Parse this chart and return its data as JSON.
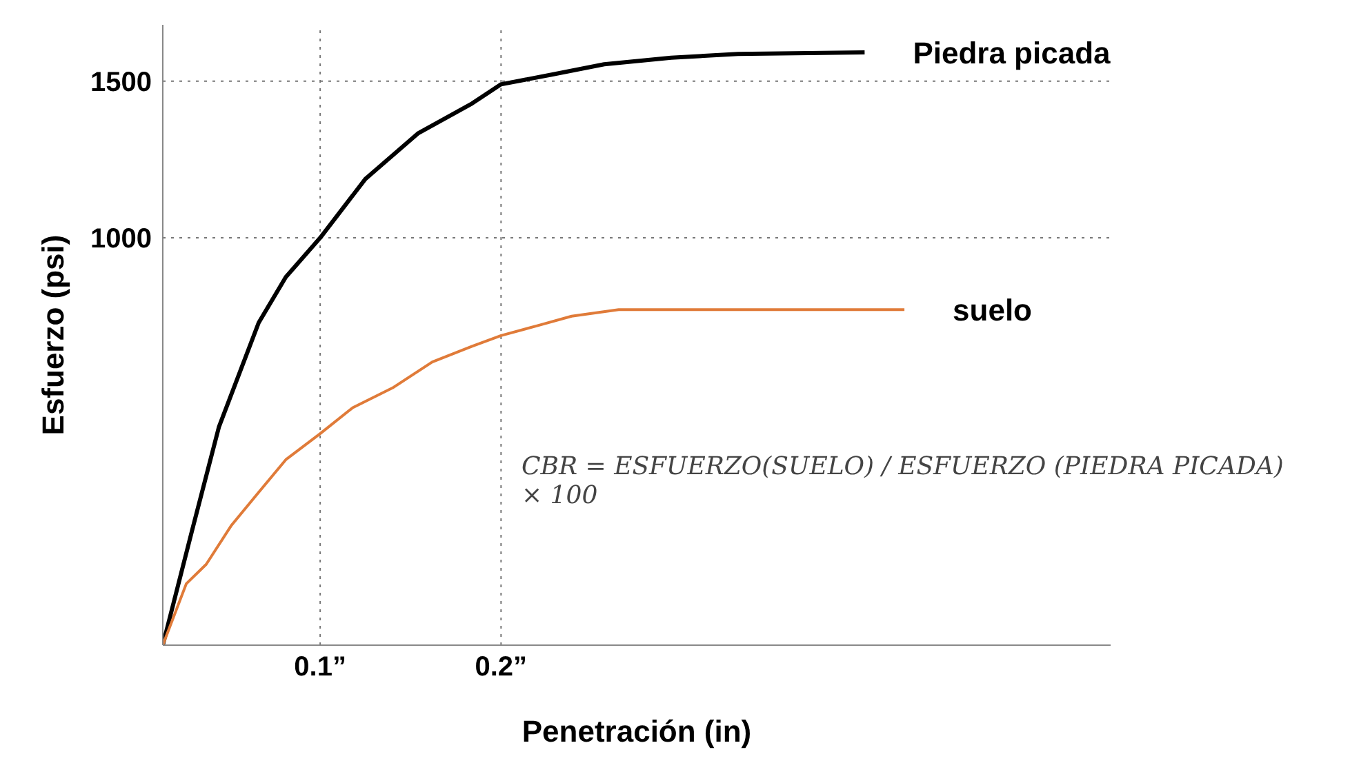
{
  "chart_data": {
    "type": "line",
    "xlabel": "Penetración (in)",
    "ylabel": "Esfuerzo (psi)",
    "xlim": [
      0.013,
      0.537
    ],
    "ylim": [
      -300,
      1680
    ],
    "xticks": [
      {
        "value": 0.1,
        "label": "0.1”"
      },
      {
        "value": 0.2,
        "label": "0.2”"
      }
    ],
    "yticks": [
      1000,
      1500
    ],
    "grid": false,
    "legend": false,
    "marker": "none",
    "line_style": "solid",
    "series": [
      {
        "name": "Piedra picada",
        "color": "#000000",
        "x": [
          0.013,
          0.029,
          0.044,
          0.066,
          0.081,
          0.1,
          0.125,
          0.154,
          0.184,
          0.2,
          0.228,
          0.257,
          0.294,
          0.331,
          0.401
        ],
        "values": [
          -300,
          62,
          396,
          729,
          875,
          1000,
          1188,
          1333,
          1429,
          1490,
          1521,
          1554,
          1575,
          1587,
          1592
        ]
      },
      {
        "name": "suelo",
        "color": "#e07b39",
        "x": [
          0.013,
          0.026,
          0.037,
          0.051,
          0.066,
          0.081,
          0.1,
          0.118,
          0.14,
          0.162,
          0.184,
          0.2,
          0.221,
          0.239,
          0.265,
          0.294,
          0.423
        ],
        "values": [
          -300,
          -104,
          -42,
          83,
          188,
          292,
          375,
          458,
          521,
          604,
          654,
          688,
          721,
          750,
          771,
          771,
          771
        ]
      }
    ],
    "ref_lines": [
      {
        "axis": "y",
        "value": 1500,
        "color": "#777777",
        "line_style": "dotted"
      },
      {
        "axis": "y",
        "value": 1000,
        "color": "#777777",
        "line_style": "dotted"
      },
      {
        "axis": "x",
        "value": 0.1,
        "color": "#777777",
        "line_style": "dotted"
      },
      {
        "axis": "x",
        "value": 0.2,
        "color": "#777777",
        "line_style": "dotted"
      }
    ],
    "annotations": [
      "CBR = ESFUERZO(SUELO) / ESFUERZO (PIEDRA PICADA) × 100"
    ]
  }
}
